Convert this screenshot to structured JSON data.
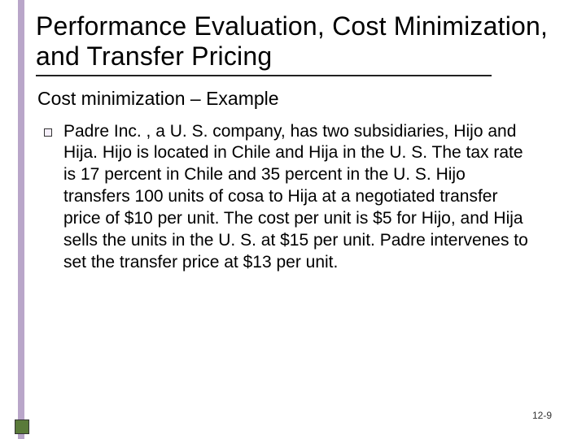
{
  "colors": {
    "accent_bar": "#b9a6c9",
    "corner_box": "#5a7a3a",
    "underline": "#222222",
    "text": "#000000",
    "background": "#ffffff",
    "bullet_fill": "#f6f0fb",
    "bullet_border": "#333333"
  },
  "typography": {
    "title_fontsize": 32,
    "subtitle_fontsize": 23,
    "body_fontsize": 21,
    "pagenum_fontsize": 12,
    "font_family": "Arial"
  },
  "title": "Performance Evaluation, Cost Minimization, and Transfer Pricing",
  "subtitle": "Cost minimization – Example",
  "body": "Padre Inc. , a U. S. company, has two subsidiaries, Hijo and Hija. Hijo is located in Chile and Hija in the U. S. The tax rate is 17 percent in Chile and 35 percent in the U. S. Hijo transfers 100 units of cosa to Hija at a negotiated transfer price of $10 per unit. The cost per unit is $5 for Hijo, and Hija sells the units in the U. S. at $15 per unit. Padre intervenes to set the transfer price at $13 per unit.",
  "page_number": "12-9"
}
